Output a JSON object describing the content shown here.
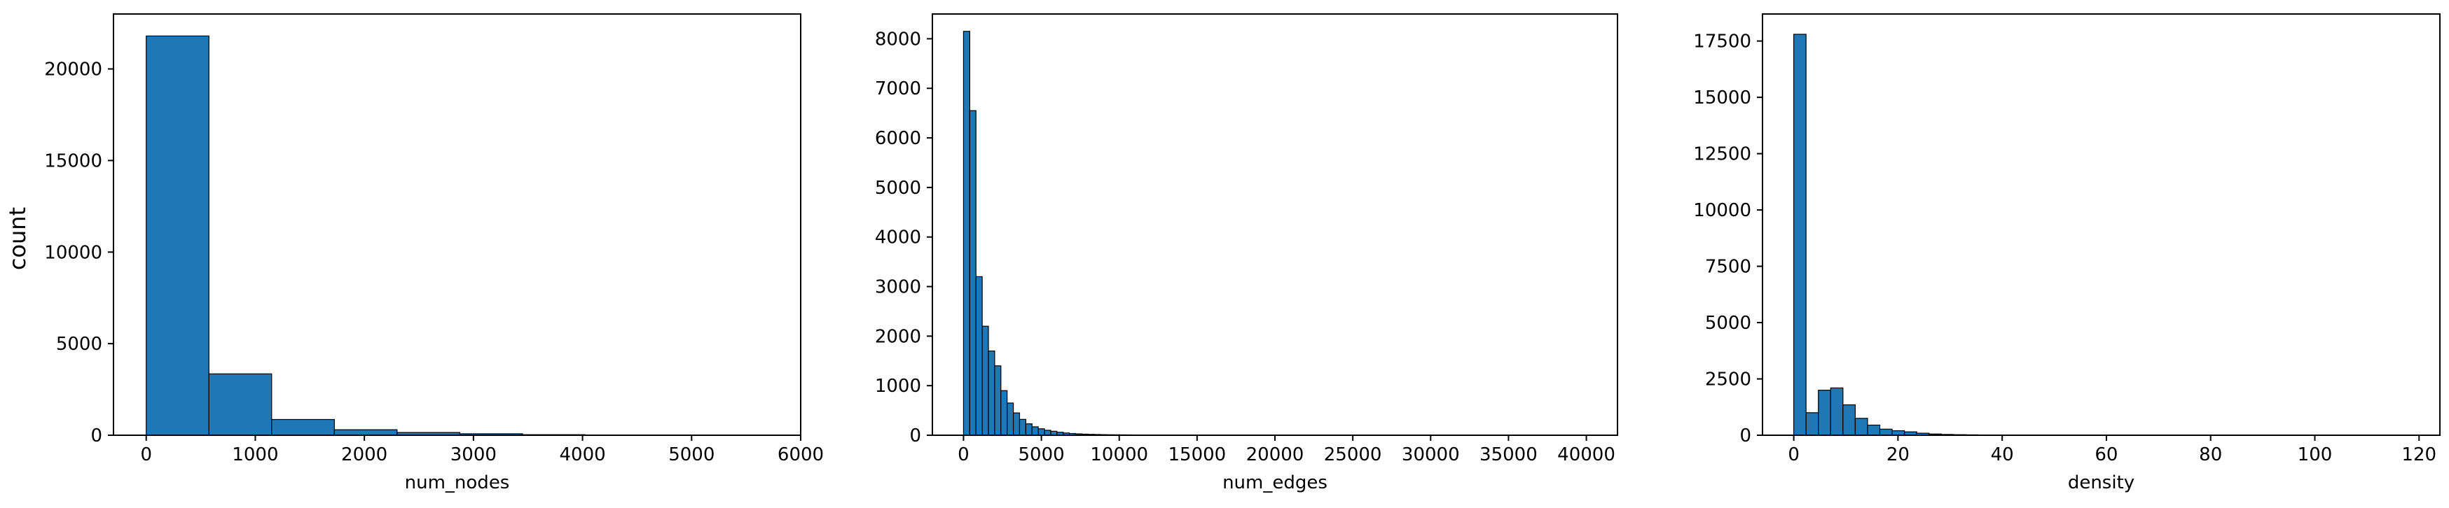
{
  "chart_data": [
    {
      "type": "bar",
      "xlabel": "num_nodes",
      "ylabel": "count",
      "xlim": [
        -300,
        6000
      ],
      "ylim": [
        0,
        23000
      ],
      "xticks": [
        0,
        1000,
        2000,
        3000,
        4000,
        5000,
        6000
      ],
      "yticks": [
        0,
        5000,
        10000,
        15000,
        20000
      ],
      "bar_color": "#1f77b4",
      "edge_color": "#000000",
      "grid": false,
      "bins": [
        {
          "x0": 0,
          "x1": 575,
          "count": 21800
        },
        {
          "x0": 575,
          "x1": 1150,
          "count": 3350
        },
        {
          "x0": 1150,
          "x1": 1725,
          "count": 860
        },
        {
          "x0": 1725,
          "x1": 2300,
          "count": 300
        },
        {
          "x0": 2300,
          "x1": 2875,
          "count": 150
        },
        {
          "x0": 2875,
          "x1": 3450,
          "count": 80
        },
        {
          "x0": 3450,
          "x1": 4025,
          "count": 30
        },
        {
          "x0": 4025,
          "x1": 4600,
          "count": 15
        },
        {
          "x0": 4600,
          "x1": 5175,
          "count": 8
        },
        {
          "x0": 5175,
          "x1": 5750,
          "count": 5
        }
      ]
    },
    {
      "type": "bar",
      "xlabel": "num_edges",
      "ylabel": "",
      "xlim": [
        -2000,
        42000
      ],
      "ylim": [
        0,
        8500
      ],
      "xticks": [
        0,
        5000,
        10000,
        15000,
        20000,
        25000,
        30000,
        35000,
        40000
      ],
      "yticks": [
        0,
        1000,
        2000,
        3000,
        4000,
        5000,
        6000,
        7000,
        8000
      ],
      "bar_color": "#1f77b4",
      "edge_color": "#000000",
      "grid": false,
      "bin_start": 0,
      "bin_width": 400,
      "counts": [
        8150,
        6550,
        3200,
        2200,
        1700,
        1400,
        900,
        650,
        450,
        320,
        230,
        170,
        130,
        100,
        80,
        60,
        45,
        35,
        28,
        22,
        18,
        15,
        12,
        10,
        9,
        8,
        7,
        6,
        5,
        5,
        4,
        4,
        3,
        3,
        3,
        3,
        2,
        2,
        2,
        2,
        2,
        2,
        2,
        2,
        2,
        1,
        1,
        1,
        1,
        1,
        1,
        1,
        1,
        1,
        1,
        1,
        1,
        1,
        1,
        1,
        1,
        1,
        1,
        1,
        1,
        1,
        1,
        1,
        1,
        1,
        1,
        1,
        1,
        1,
        1,
        1,
        1,
        1,
        1,
        1,
        1,
        1,
        1,
        1,
        1,
        1,
        1,
        1,
        1,
        1,
        1,
        1,
        1,
        1,
        1,
        1,
        1,
        1,
        1,
        1
      ]
    },
    {
      "type": "bar",
      "xlabel": "density",
      "ylabel": "",
      "xlim": [
        -6,
        124
      ],
      "ylim": [
        0,
        18700
      ],
      "xticks": [
        0,
        20,
        40,
        60,
        80,
        100,
        120
      ],
      "yticks": [
        0,
        2500,
        5000,
        7500,
        10000,
        12500,
        15000,
        17500
      ],
      "bar_color": "#1f77b4",
      "edge_color": "#000000",
      "grid": false,
      "bin_start": 0,
      "bin_width": 2.36,
      "counts": [
        17800,
        1000,
        2000,
        2100,
        1350,
        750,
        450,
        270,
        200,
        150,
        90,
        55,
        35,
        25,
        18,
        12,
        9,
        7,
        6,
        5,
        4,
        3,
        3,
        2,
        2,
        2,
        2,
        2,
        1,
        1,
        1,
        1,
        1,
        1,
        1,
        1,
        1,
        1,
        1,
        1,
        1,
        1,
        1,
        1,
        1,
        1,
        1,
        1,
        1,
        1
      ]
    }
  ]
}
